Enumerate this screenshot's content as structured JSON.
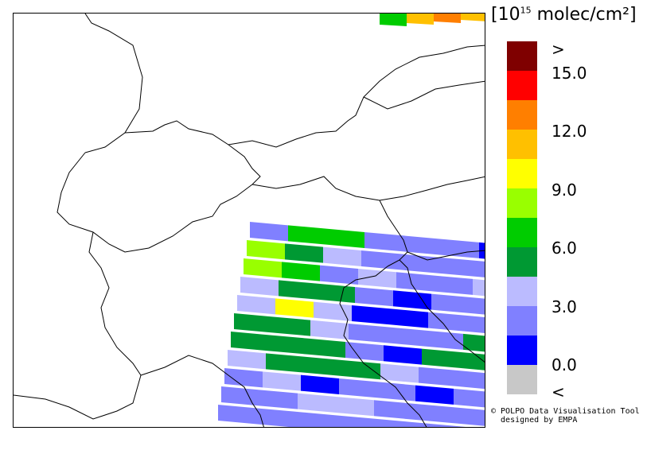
{
  "colorbar": {
    "unit_prefix": "[10",
    "unit_exponent": "15",
    "unit_suffix": " molec/cm²]",
    "classes": [
      {
        "key": "over",
        "color": "#7f0000"
      },
      {
        "key": "13.5-15",
        "color": "#ff0000"
      },
      {
        "key": "12-13.5",
        "color": "#ff7f00"
      },
      {
        "key": "10.5-12",
        "color": "#ffc000"
      },
      {
        "key": "9-10.5",
        "color": "#ffff00"
      },
      {
        "key": "7.5-9",
        "color": "#99ff00"
      },
      {
        "key": "6-7.5",
        "color": "#00cc00"
      },
      {
        "key": "4.5-6",
        "color": "#009933"
      },
      {
        "key": "3-4.5",
        "color": "#bbbbff"
      },
      {
        "key": "1.5-3",
        "color": "#8080ff"
      },
      {
        "key": "0-1.5",
        "color": "#0000ff"
      },
      {
        "key": "under",
        "color": "#c8c8c8"
      }
    ],
    "labels": [
      ">",
      "15.0",
      "12.0",
      "9.0",
      "6.0",
      "3.0",
      "0.0",
      "<"
    ]
  },
  "copyright": {
    "line1": "© POLPO Data Visualisation Tool",
    "line2": "  designed by EMPA"
  },
  "map": {
    "pixel_rows": [
      [
        "1.5-3",
        "6-7.5",
        "6-7.5",
        "1.5-3",
        "1.5-3",
        "1.5-3",
        "0-1.5"
      ],
      [
        "7.5-9",
        "4.5-6",
        "3-4.5",
        "1.5-3",
        "1.5-3",
        "1.5-3",
        "1.5-3"
      ],
      [
        "7.5-9",
        "6-7.5",
        "1.5-3",
        "3-4.5",
        "1.5-3",
        "1.5-3",
        "3-4.5"
      ],
      [
        "3-4.5",
        "4.5-6",
        "4.5-6",
        "1.5-3",
        "0-1.5",
        "1.5-3",
        "1.5-3"
      ],
      [
        "3-4.5",
        "9-10.5",
        "3-4.5",
        "0-1.5",
        "0-1.5",
        "1.5-3",
        "1.5-3"
      ],
      [
        "4.5-6",
        "4.5-6",
        "3-4.5",
        "1.5-3",
        "1.5-3",
        "1.5-3",
        "4.5-6"
      ],
      [
        "4.5-6",
        "4.5-6",
        "4.5-6",
        "1.5-3",
        "0-1.5",
        "4.5-6",
        "4.5-6"
      ],
      [
        "3-4.5",
        "4.5-6",
        "4.5-6",
        "4.5-6",
        "3-4.5",
        "1.5-3",
        "1.5-3"
      ],
      [
        "1.5-3",
        "3-4.5",
        "0-1.5",
        "1.5-3",
        "1.5-3",
        "0-1.5",
        "1.5-3"
      ],
      [
        "1.5-3",
        "1.5-3",
        "3-4.5",
        "3-4.5",
        "1.5-3",
        "1.5-3",
        "1.5-3"
      ],
      [
        "1.5-3",
        "1.5-3",
        "1.5-3",
        "1.5-3",
        "1.5-3",
        "1.5-3",
        "1.5-3"
      ]
    ],
    "corner_pixels": [
      "6-7.5",
      "10.5-12",
      "12-13.5",
      "10.5-12"
    ]
  }
}
